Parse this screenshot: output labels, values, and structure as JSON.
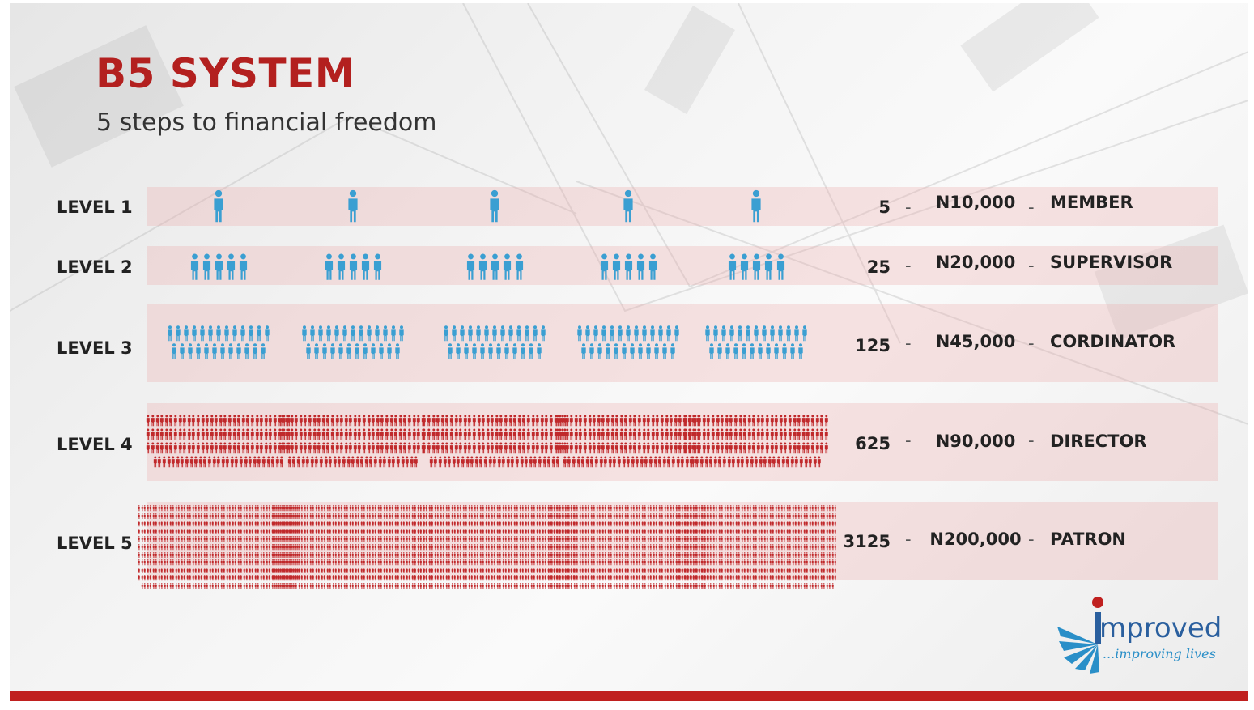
{
  "title": "B5 SYSTEM",
  "subtitle": "5 steps to financial freedom",
  "levels": [
    {
      "label": "LEVEL 1",
      "count": "5",
      "amount": "N10,000",
      "rank": "MEMBER",
      "color": "#3a9fd2"
    },
    {
      "label": "LEVEL 2",
      "count": "25",
      "amount": "N20,000",
      "rank": "SUPERVISOR",
      "color": "#3a9fd2"
    },
    {
      "label": "LEVEL 3",
      "count": "125",
      "amount": "N45,000",
      "rank": "CORDINATOR",
      "color": "#3a9fd2"
    },
    {
      "label": "LEVEL 4",
      "count": "625",
      "amount": "N90,000",
      "rank": "DIRECTOR",
      "color": "#c0292b"
    },
    {
      "label": "LEVEL 5",
      "count": "3125",
      "amount": "N200,000",
      "rank": "PATRON",
      "color": "#c0292b"
    }
  ],
  "separator": "-",
  "logo": {
    "name": "mproved",
    "tagline": "...improving lives",
    "colors": {
      "primary": "#2a5f9e",
      "accent": "#c0201f",
      "light": "#2a8fc8"
    }
  },
  "colors": {
    "title": "#b3201f",
    "band": "#f0c4c4",
    "bottom_bar": "#c0201f"
  }
}
